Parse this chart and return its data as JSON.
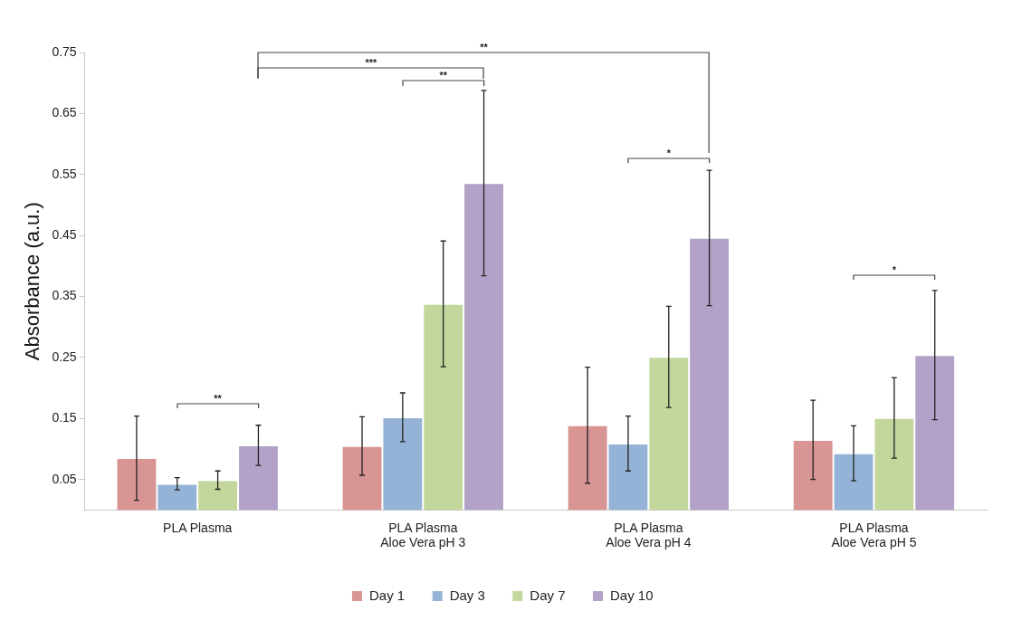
{
  "chart_data": {
    "type": "bar",
    "ylabel": "Absorbance (a.u.)",
    "categories": [
      "PLA Plasma",
      "PLA Plasma\nAloe Vera pH 3",
      "PLA Plasma\nAloe Vera pH 4",
      "PLA Plasma\nAloe Vera pH 5"
    ],
    "series": [
      {
        "name": "Day 1",
        "color": "#d99594",
        "values": [
          0.085,
          0.105,
          0.139,
          0.115
        ],
        "errors": [
          0.069,
          0.048,
          0.095,
          0.065
        ]
      },
      {
        "name": "Day 3",
        "color": "#95b3d7",
        "values": [
          0.043,
          0.152,
          0.109,
          0.093
        ],
        "errors": [
          0.01,
          0.04,
          0.045,
          0.045
        ]
      },
      {
        "name": "Day 7",
        "color": "#c3d69b",
        "values": [
          0.049,
          0.338,
          0.251,
          0.151
        ],
        "errors": [
          0.015,
          0.103,
          0.083,
          0.066
        ]
      },
      {
        "name": "Day 10",
        "color": "#b2a2c7",
        "values": [
          0.106,
          0.536,
          0.446,
          0.254
        ],
        "errors": [
          0.033,
          0.152,
          0.111,
          0.106
        ]
      }
    ],
    "ylim": [
      0,
      0.75
    ],
    "yticks": [
      0.05,
      0.15,
      0.25,
      0.35,
      0.45,
      0.55,
      0.65,
      0.75
    ],
    "grid": false,
    "legend": "bottom",
    "annotations": [
      "**",
      "***",
      "**",
      "*",
      "*",
      "**"
    ]
  }
}
